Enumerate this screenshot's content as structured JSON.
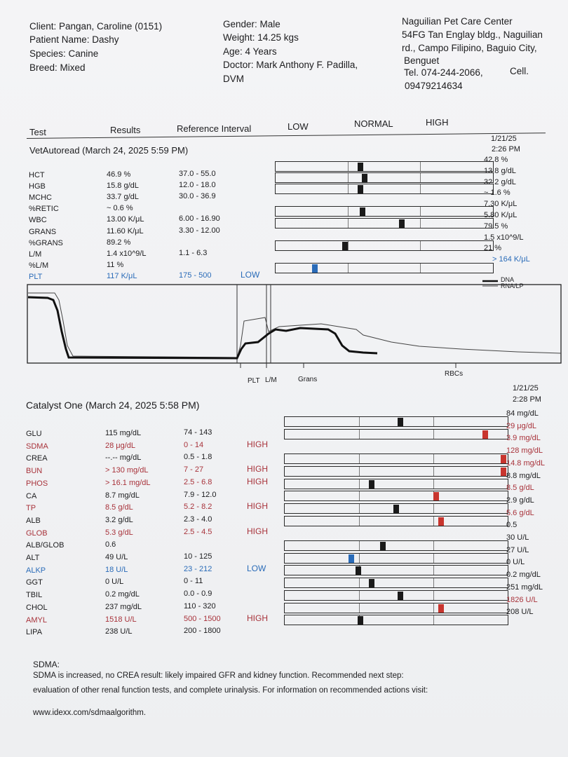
{
  "client": {
    "client_line": "Client: Pangan, Caroline (0151)",
    "patient_line": "Patient Name: Dashy",
    "species_line": "Species: Canine",
    "breed_line": "Breed: Mixed",
    "gender_line": "Gender: Male",
    "weight_line": "Weight: 14.25 kgs",
    "age_line": "Age: 4 Years",
    "doctor_line1": "Doctor: Mark Anthony F. Padilla,",
    "doctor_line2": "DVM"
  },
  "clinic": {
    "name": "Naguilian Pet Care Center",
    "addr1": "54FG Tan Englay bldg., Naguilian",
    "addr2": "rd., Campo Filipino, Baguio City,",
    "addr3": "Benguet",
    "tel": "Tel. 074-244-2066,",
    "cell_label": "Cell.",
    "cell": "09479214634"
  },
  "columns": {
    "test": "Test",
    "results": "Results",
    "ref": "Reference Interval",
    "low": "LOW",
    "normal": "NORMAL",
    "high": "HIGH"
  },
  "vetautoread": {
    "title": "VetAutoread (March 24, 2025 5:59 PM)",
    "prev_date": "1/21/25",
    "prev_time": "2:26 PM",
    "rows": [
      {
        "test": "HCT",
        "result": "46.9 %",
        "ref": "37.0 - 55.0",
        "flag": "",
        "color": "#1c1c1e"
      },
      {
        "test": "HGB",
        "result": "15.8 g/dL",
        "ref": "12.0 - 18.0",
        "flag": "",
        "color": "#1c1c1e"
      },
      {
        "test": "MCHC",
        "result": "33.7 g/dL",
        "ref": "30.0 - 36.9",
        "flag": "",
        "color": "#1c1c1e"
      },
      {
        "test": "%RETIC",
        "result": "~ 0.6 %",
        "ref": "",
        "flag": "",
        "color": "#1c1c1e"
      },
      {
        "test": "WBC",
        "result": "13.00 K/μL",
        "ref": "6.00 - 16.90",
        "flag": "",
        "color": "#1c1c1e"
      },
      {
        "test": "GRANS",
        "result": "11.60 K/μL",
        "ref": "3.30 - 12.00",
        "flag": "",
        "color": "#1c1c1e"
      },
      {
        "test": "%GRANS",
        "result": "89.2 %",
        "ref": "",
        "flag": "",
        "color": "#1c1c1e"
      },
      {
        "test": "L/M",
        "result": "1.4 x10^9/L",
        "ref": "1.1 - 6.3",
        "flag": "",
        "color": "#1c1c1e"
      },
      {
        "test": "%L/M",
        "result": "11 %",
        "ref": "",
        "flag": "",
        "color": "#1c1c1e"
      },
      {
        "test": "PLT",
        "result": "117 K/μL",
        "ref": "175 - 500",
        "flag": "LOW",
        "color": "#2a6bb8"
      }
    ],
    "prev_values": [
      "42.8 %",
      "13.8 g/dL",
      "32.2 g/dL",
      "~ 1.6 %",
      "7.30 K/μL",
      "5.80 K/μL",
      "79.5 %",
      "1.5 x10^9/L",
      "21 %",
      "> 164 K/μL"
    ],
    "gauges": [
      {
        "test": "HCT",
        "position": 0.39,
        "status": "normal"
      },
      {
        "test": "HGB",
        "position": 0.41,
        "status": "normal"
      },
      {
        "test": "MCHC",
        "position": 0.39,
        "status": "normal"
      },
      {
        "test": "WBC",
        "position": 0.4,
        "status": "normal"
      },
      {
        "test": "GRANS",
        "position": 0.58,
        "status": "normal"
      },
      {
        "test": "L/M",
        "position": 0.32,
        "status": "normal"
      },
      {
        "test": "PLT",
        "position": 0.18,
        "status": "low"
      }
    ]
  },
  "histogram": {
    "legend_dna": "DNA",
    "legend_rna": "RNA/LP",
    "label_plt": "PLT",
    "label_lm": "L/M",
    "label_grans": "Grans",
    "label_rbcs": "RBCs"
  },
  "catalyst": {
    "title": "Catalyst One (March 24, 2025 5:58 PM)",
    "prev_date": "1/21/25",
    "prev_time": "2:28 PM",
    "rows": [
      {
        "test": "GLU",
        "result": "115 mg/dL",
        "ref": "74 - 143",
        "flag": "",
        "color": "#1c1c1e"
      },
      {
        "test": "SDMA",
        "result": "28 μg/dL",
        "ref": "0 - 14",
        "flag": "HIGH",
        "color": "#a8323a"
      },
      {
        "test": "CREA",
        "result": "--.-- mg/dL",
        "ref": "0.5 - 1.8",
        "flag": "",
        "color": "#1c1c1e"
      },
      {
        "test": "BUN",
        "result": "> 130 mg/dL",
        "ref": "7 - 27",
        "flag": "HIGH",
        "color": "#a8323a"
      },
      {
        "test": "PHOS",
        "result": "> 16.1 mg/dL",
        "ref": "2.5 - 6.8",
        "flag": "HIGH",
        "color": "#a8323a"
      },
      {
        "test": "CA",
        "result": "8.7 mg/dL",
        "ref": "7.9 - 12.0",
        "flag": "",
        "color": "#1c1c1e"
      },
      {
        "test": "TP",
        "result": "8.5 g/dL",
        "ref": "5.2 - 8.2",
        "flag": "HIGH",
        "color": "#a8323a"
      },
      {
        "test": "ALB",
        "result": "3.2 g/dL",
        "ref": "2.3 - 4.0",
        "flag": "",
        "color": "#1c1c1e"
      },
      {
        "test": "GLOB",
        "result": "5.3 g/dL",
        "ref": "2.5 - 4.5",
        "flag": "HIGH",
        "color": "#a8323a"
      },
      {
        "test": "ALB/GLOB",
        "result": "0.6",
        "ref": "",
        "flag": "",
        "color": "#1c1c1e"
      },
      {
        "test": "ALT",
        "result": "49 U/L",
        "ref": "10 - 125",
        "flag": "",
        "color": "#1c1c1e"
      },
      {
        "test": "ALKP",
        "result": "18 U/L",
        "ref": "23 - 212",
        "flag": "LOW",
        "color": "#2a6bb8"
      },
      {
        "test": "GGT",
        "result": "0 U/L",
        "ref": "0 - 11",
        "flag": "",
        "color": "#1c1c1e"
      },
      {
        "test": "TBIL",
        "result": "0.2 mg/dL",
        "ref": "0.0 - 0.9",
        "flag": "",
        "color": "#1c1c1e"
      },
      {
        "test": "CHOL",
        "result": "237 mg/dL",
        "ref": "110 - 320",
        "flag": "",
        "color": "#1c1c1e"
      },
      {
        "test": "AMYL",
        "result": "1518 U/L",
        "ref": "500 - 1500",
        "flag": "HIGH",
        "color": "#a8323a"
      },
      {
        "test": "LIPA",
        "result": "238 U/L",
        "ref": "200 - 1800",
        "flag": "",
        "color": "#1c1c1e"
      }
    ],
    "prev_values": [
      {
        "text": "84 mg/dL",
        "color": "#1c1c1e"
      },
      {
        "text": "29 μg/dL",
        "color": "#a8323a"
      },
      {
        "text": "3.9 mg/dL",
        "color": "#a8323a"
      },
      {
        "text": "128 mg/dL",
        "color": "#a8323a"
      },
      {
        "text": "14.8 mg/dL",
        "color": "#a8323a"
      },
      {
        "text": "8.8 mg/dL",
        "color": "#1c1c1e"
      },
      {
        "text": "8.5 g/dL",
        "color": "#a8323a"
      },
      {
        "text": "2.9 g/dL",
        "color": "#1c1c1e"
      },
      {
        "text": "5.6 g/dL",
        "color": "#a8323a"
      },
      {
        "text": "0.5",
        "color": "#1c1c1e"
      },
      {
        "text": "30 U/L",
        "color": "#1c1c1e"
      },
      {
        "text": "27 U/L",
        "color": "#1c1c1e"
      },
      {
        "text": "0 U/L",
        "color": "#1c1c1e"
      },
      {
        "text": "0.2 mg/dL",
        "color": "#1c1c1e"
      },
      {
        "text": "251 mg/dL",
        "color": "#1c1c1e"
      },
      {
        "text": "1826 U/L",
        "color": "#a8323a"
      },
      {
        "text": "208 U/L",
        "color": "#1c1c1e"
      }
    ],
    "gauges": [
      {
        "test": "GLU",
        "position": 0.52,
        "status": "normal"
      },
      {
        "test": "SDMA",
        "position": 0.9,
        "status": "high"
      },
      {
        "test": "BUN",
        "position": 0.98,
        "status": "high"
      },
      {
        "test": "PHOS",
        "position": 0.98,
        "status": "high"
      },
      {
        "test": "CA",
        "position": 0.39,
        "status": "normal"
      },
      {
        "test": "TP",
        "position": 0.68,
        "status": "high"
      },
      {
        "test": "ALB",
        "position": 0.5,
        "status": "normal"
      },
      {
        "test": "GLOB",
        "position": 0.7,
        "status": "high"
      },
      {
        "test": "ALT",
        "position": 0.44,
        "status": "normal"
      },
      {
        "test": "ALKP",
        "position": 0.3,
        "status": "low"
      },
      {
        "test": "GGT",
        "position": 0.33,
        "status": "normal"
      },
      {
        "test": "TBIL",
        "position": 0.39,
        "status": "normal"
      },
      {
        "test": "CHOL",
        "position": 0.52,
        "status": "normal"
      },
      {
        "test": "AMYL",
        "position": 0.7,
        "status": "high"
      },
      {
        "test": "LIPA",
        "position": 0.34,
        "status": "normal"
      }
    ]
  },
  "colors": {
    "normal": "#1a1a1a",
    "low": "#2a6bb8",
    "high": "#c8352e"
  },
  "notes": {
    "heading": "SDMA:",
    "line1": "SDMA is increased, no CREA result: likely impaired GFR and kidney function. Recommended next step:",
    "line2": "evaluation of other renal function tests, and complete urinalysis. For information on recommended actions visit:",
    "line3": "www.idexx.com/sdmaalgorithm."
  }
}
